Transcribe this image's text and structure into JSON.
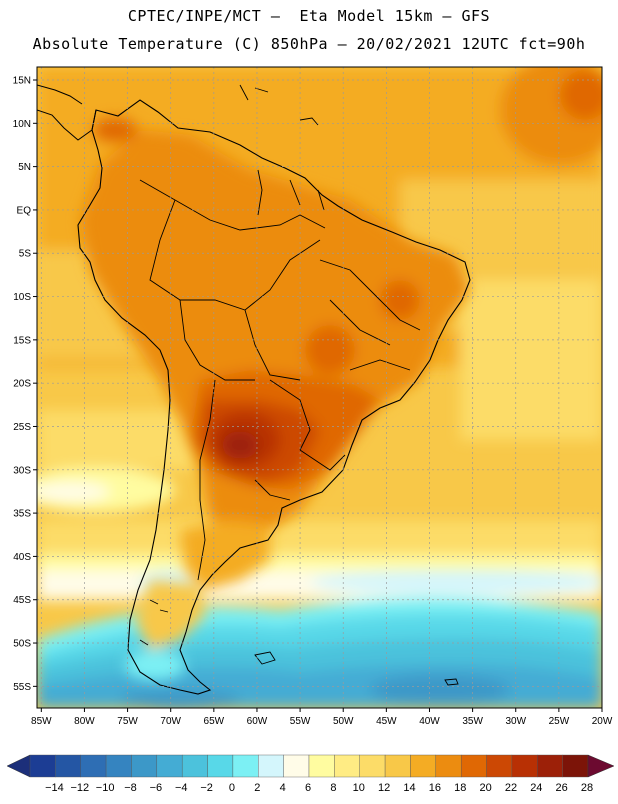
{
  "header": {
    "line1": "CPTEC/INPE/MCT –  Eta Model 15km – GFS",
    "line2": "Absolute Temperature (C) 850hPa – 20/02/2021 12UTC fct=90h"
  },
  "axes": {
    "lat_labels": [
      "15N",
      "10N",
      "5N",
      "EQ",
      "5S",
      "10S",
      "15S",
      "20S",
      "25S",
      "30S",
      "35S",
      "40S",
      "45S",
      "50S",
      "55S"
    ],
    "lat_values": [
      15,
      10,
      5,
      0,
      -5,
      -10,
      -15,
      -20,
      -25,
      -30,
      -35,
      -40,
      -45,
      -50,
      -55
    ],
    "lon_labels": [
      "85W",
      "80W",
      "75W",
      "70W",
      "65W",
      "60W",
      "55W",
      "50W",
      "45W",
      "40W",
      "35W",
      "30W",
      "25W",
      "20W"
    ],
    "lon_values": [
      -85,
      -80,
      -75,
      -70,
      -65,
      -60,
      -55,
      -50,
      -45,
      -40,
      -35,
      -30,
      -25,
      -20
    ],
    "lat_range": [
      -57.5,
      16.5
    ],
    "lon_range": [
      -85.5,
      -20
    ]
  },
  "colorbar": {
    "labels": [
      "-14",
      "-12",
      "-10",
      "-8",
      "-6",
      "-4",
      "-2",
      "0",
      "2",
      "4",
      "6",
      "8",
      "10",
      "12",
      "14",
      "16",
      "18",
      "20",
      "22",
      "24",
      "26",
      "28"
    ],
    "colors": [
      "#1c3d94",
      "#2456a4",
      "#2e6eb4",
      "#3584c0",
      "#3c98c8",
      "#44acd4",
      "#4cc2dc",
      "#58d8e8",
      "#7cf0f4",
      "#d4f6fc",
      "#fffce8",
      "#fffca0",
      "#ffec84",
      "#fcdc68",
      "#f8c848",
      "#f4ac24",
      "#ec8c10",
      "#e06804",
      "#cc4804",
      "#b83004",
      "#9c2008",
      "#7c1408"
    ],
    "low_cap_color": "#1c2f7a",
    "high_cap_color": "#6c0a30"
  }
}
